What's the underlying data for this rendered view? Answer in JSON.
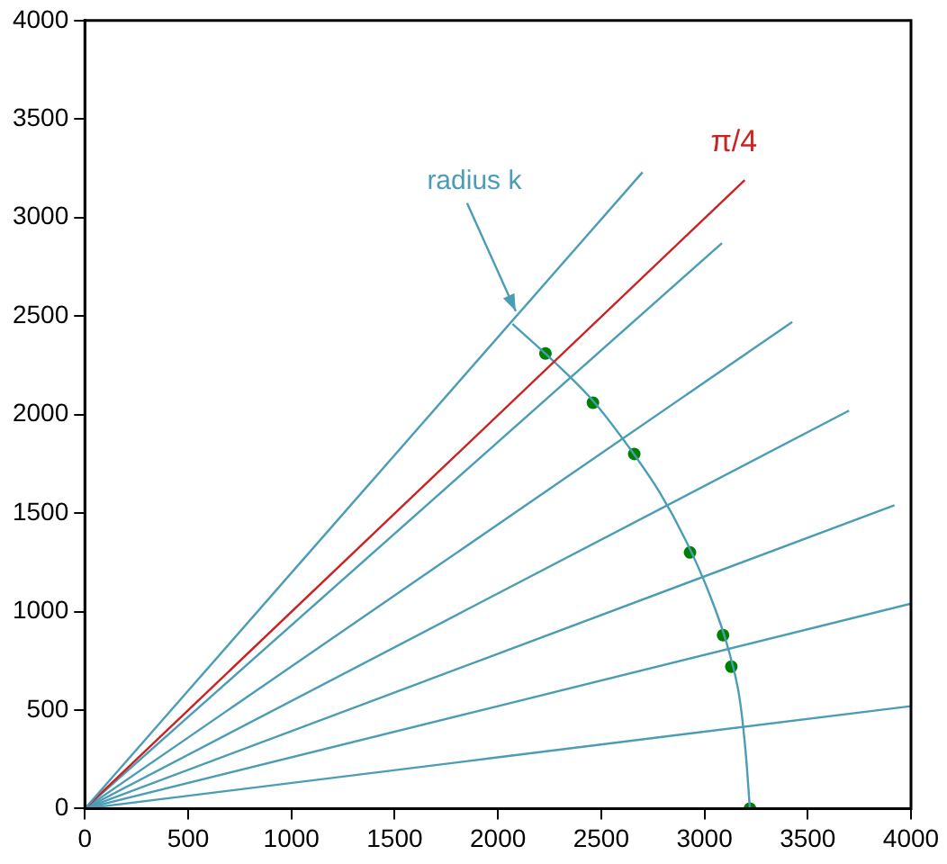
{
  "chart_data": {
    "type": "line",
    "xlim": [
      0,
      4000
    ],
    "ylim": [
      0,
      4000
    ],
    "xticks": [
      0,
      500,
      1000,
      1500,
      2000,
      2500,
      3000,
      3500,
      4000
    ],
    "yticks": [
      0,
      500,
      1000,
      1500,
      2000,
      2500,
      3000,
      3500,
      4000
    ],
    "grid": false,
    "legend": false,
    "marker": "none",
    "line_style": "solid",
    "series": [
      {
        "x": [
          0,
          2700
        ],
        "values": [
          0,
          3230
        ],
        "color": "#4a9db5"
      },
      {
        "name": "π/4",
        "x": [
          0,
          3195
        ],
        "values": [
          0,
          3190
        ],
        "color": "#cc2222"
      },
      {
        "x": [
          0,
          3085
        ],
        "values": [
          0,
          2870
        ],
        "color": "#4a9db5"
      },
      {
        "x": [
          0,
          3425
        ],
        "values": [
          0,
          2470
        ],
        "color": "#4a9db5"
      },
      {
        "x": [
          0,
          3700
        ],
        "values": [
          0,
          2020
        ],
        "color": "#4a9db5"
      },
      {
        "x": [
          0,
          3920
        ],
        "values": [
          0,
          1540
        ],
        "color": "#4a9db5"
      },
      {
        "x": [
          0,
          4000
        ],
        "values": [
          0,
          1040
        ],
        "color": "#4a9db5"
      },
      {
        "x": [
          0,
          4000
        ],
        "values": [
          0,
          520
        ],
        "color": "#4a9db5"
      },
      {
        "x": [
          2070,
          2270,
          2460,
          2630,
          2780,
          2910,
          3020,
          3110,
          3170,
          3200,
          3220
        ],
        "values": [
          2460,
          2270,
          2070,
          1840,
          1610,
          1360,
          1100,
          830,
          560,
          280,
          0
        ],
        "color": "#4a9db5"
      },
      {
        "type": "scatter",
        "marker": "circle",
        "x": [
          2230,
          2460,
          2660,
          2930,
          3090,
          3130,
          3220
        ],
        "values": [
          2310,
          2060,
          1800,
          1300,
          880,
          720,
          0
        ],
        "color": "#008000"
      }
    ],
    "annotations": [
      {
        "text": "radius k",
        "x": 2060,
        "y": 2470
      }
    ]
  }
}
